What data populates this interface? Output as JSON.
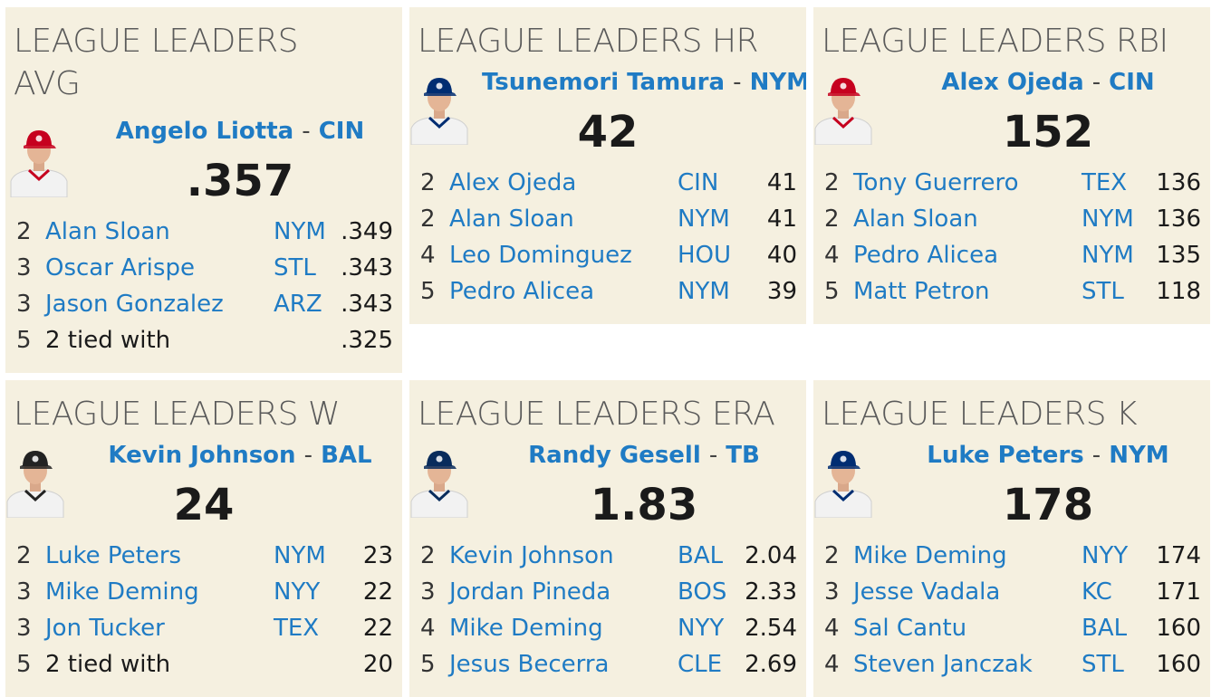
{
  "cards": {
    "avg": {
      "title": "LEAGUE LEADERS AVG",
      "leader": {
        "name": "Angelo Liotta",
        "sep": "-",
        "team": "CIN",
        "value": ".357",
        "cap_color": "#c6011f",
        "jersey": "Reds"
      },
      "rows": [
        {
          "rank": "2",
          "name": "Alan Sloan",
          "team": "NYM",
          "value": ".349"
        },
        {
          "rank": "3",
          "name": "Oscar Arispe",
          "team": "STL",
          "value": ".343"
        },
        {
          "rank": "3",
          "name": "Jason Gonzalez",
          "team": "ARZ",
          "value": ".343"
        },
        {
          "rank": "5",
          "name": "2 tied with",
          "team": "",
          "value": ".325"
        }
      ]
    },
    "hr": {
      "title": "LEAGUE LEADERS HR",
      "leader": {
        "name": "Tsunemori Tamura",
        "sep": "-",
        "team": "NYM",
        "value": "42",
        "cap_color": "#002d72",
        "jersey": "Mets"
      },
      "rows": [
        {
          "rank": "2",
          "name": "Alex Ojeda",
          "team": "CIN",
          "value": "41"
        },
        {
          "rank": "2",
          "name": "Alan Sloan",
          "team": "NYM",
          "value": "41"
        },
        {
          "rank": "4",
          "name": "Leo Dominguez",
          "team": "HOU",
          "value": "40"
        },
        {
          "rank": "5",
          "name": "Pedro Alicea",
          "team": "NYM",
          "value": "39"
        }
      ]
    },
    "rbi": {
      "title": "LEAGUE LEADERS RBI",
      "leader": {
        "name": "Alex Ojeda",
        "sep": "-",
        "team": "CIN",
        "value": "152",
        "cap_color": "#c6011f",
        "jersey": "Reds"
      },
      "rows": [
        {
          "rank": "2",
          "name": "Tony Guerrero",
          "team": "TEX",
          "value": "136"
        },
        {
          "rank": "2",
          "name": "Alan Sloan",
          "team": "NYM",
          "value": "136"
        },
        {
          "rank": "4",
          "name": "Pedro Alicea",
          "team": "NYM",
          "value": "135"
        },
        {
          "rank": "5",
          "name": "Matt Petron",
          "team": "STL",
          "value": "118"
        }
      ]
    },
    "w": {
      "title": "LEAGUE LEADERS W",
      "leader": {
        "name": "Kevin Johnson",
        "sep": "-",
        "team": "BAL",
        "value": "24",
        "cap_color": "#222222",
        "jersey": "Orioles"
      },
      "rows": [
        {
          "rank": "2",
          "name": "Luke Peters",
          "team": "NYM",
          "value": "23"
        },
        {
          "rank": "3",
          "name": "Mike Deming",
          "team": "NYY",
          "value": "22"
        },
        {
          "rank": "3",
          "name": "Jon Tucker",
          "team": "TEX",
          "value": "22"
        },
        {
          "rank": "5",
          "name": "2 tied with",
          "team": "",
          "value": "20"
        }
      ]
    },
    "era": {
      "title": "LEAGUE LEADERS ERA",
      "leader": {
        "name": "Randy Gesell",
        "sep": "-",
        "team": "TB",
        "value": "1.83",
        "cap_color": "#092c5c",
        "jersey": "Rays"
      },
      "rows": [
        {
          "rank": "2",
          "name": "Kevin Johnson",
          "team": "BAL",
          "value": "2.04"
        },
        {
          "rank": "3",
          "name": "Jordan Pineda",
          "team": "BOS",
          "value": "2.33"
        },
        {
          "rank": "4",
          "name": "Mike Deming",
          "team": "NYY",
          "value": "2.54"
        },
        {
          "rank": "5",
          "name": "Jesus Becerra",
          "team": "CLE",
          "value": "2.69"
        }
      ]
    },
    "k": {
      "title": "LEAGUE LEADERS K",
      "leader": {
        "name": "Luke Peters",
        "sep": "-",
        "team": "NYM",
        "value": "178",
        "cap_color": "#002d72",
        "jersey": "Mets"
      },
      "rows": [
        {
          "rank": "2",
          "name": "Mike Deming",
          "team": "NYY",
          "value": "174"
        },
        {
          "rank": "3",
          "name": "Jesse Vadala",
          "team": "KC",
          "value": "171"
        },
        {
          "rank": "4",
          "name": "Sal Cantu",
          "team": "BAL",
          "value": "160"
        },
        {
          "rank": "4",
          "name": "Steven Janczak",
          "team": "STL",
          "value": "160"
        }
      ]
    }
  },
  "colors": {
    "card_bg": "#f5f0e0",
    "link": "#1f7bc4",
    "value": "#1a1a1a",
    "title": "#5a5a5a"
  }
}
